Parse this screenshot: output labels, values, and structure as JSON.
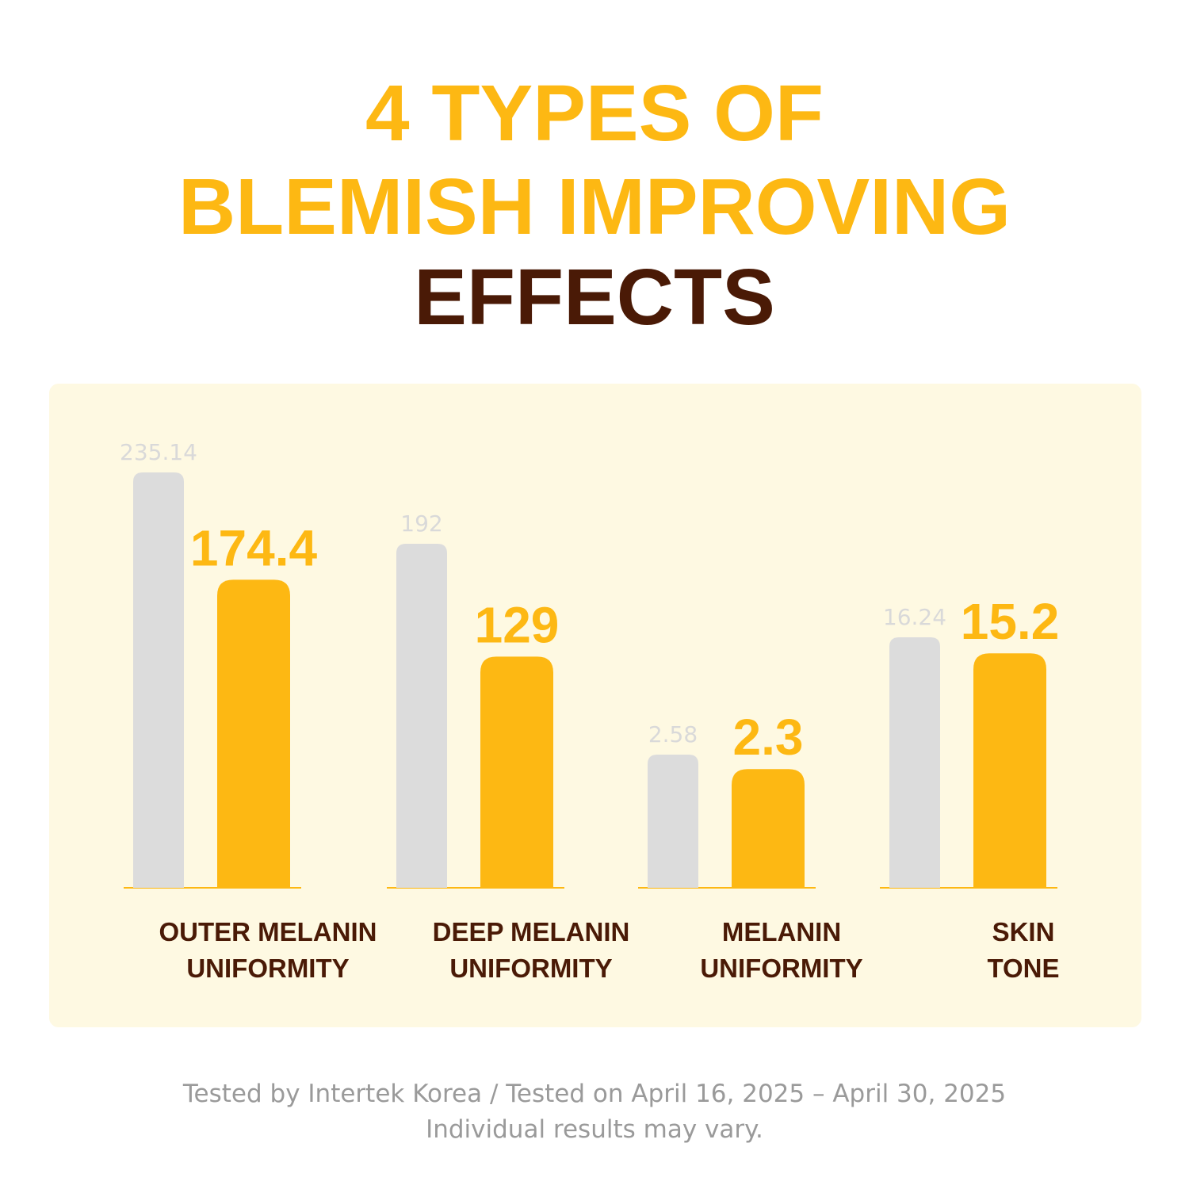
{
  "title": {
    "line1": "4 TYPES OF",
    "line2": "BLEMISH IMPROVING",
    "line3": "EFFECTS"
  },
  "colors": {
    "accent": "#FDB813",
    "before_bar": "#DCDCDC",
    "before_label": "#D9D9D9",
    "category_text": "#4A1A06",
    "panel_bg": "#FEF9E2"
  },
  "chart_data": {
    "type": "bar",
    "categories": [
      "OUTER MELANIN UNIFORMITY",
      "DEEP MELANIN UNIFORMITY",
      "MELANIN UNIFORMITY",
      "SKIN TONE"
    ],
    "category_lines": [
      [
        "OUTER MELANIN",
        "UNIFORMITY"
      ],
      [
        "DEEP MELANIN",
        "UNIFORMITY"
      ],
      [
        "MELANIN",
        "UNIFORMITY"
      ],
      [
        "SKIN",
        "TONE"
      ]
    ],
    "series": [
      {
        "values": [
          235.14,
          192,
          2.58,
          16.24
        ],
        "labels": [
          "235.14",
          "192",
          "2.58",
          "16.24"
        ]
      },
      {
        "values": [
          174.4,
          129,
          2.3,
          15.2
        ],
        "labels": [
          "174.4",
          "129",
          "2.3",
          "15.2"
        ]
      }
    ],
    "independent_scales": true,
    "legend": "none",
    "grid": false
  },
  "footer": {
    "line1": "Tested by Intertek Korea / Tested on April 16, 2025 – April 30, 2025",
    "line2": "Individual results may vary."
  }
}
